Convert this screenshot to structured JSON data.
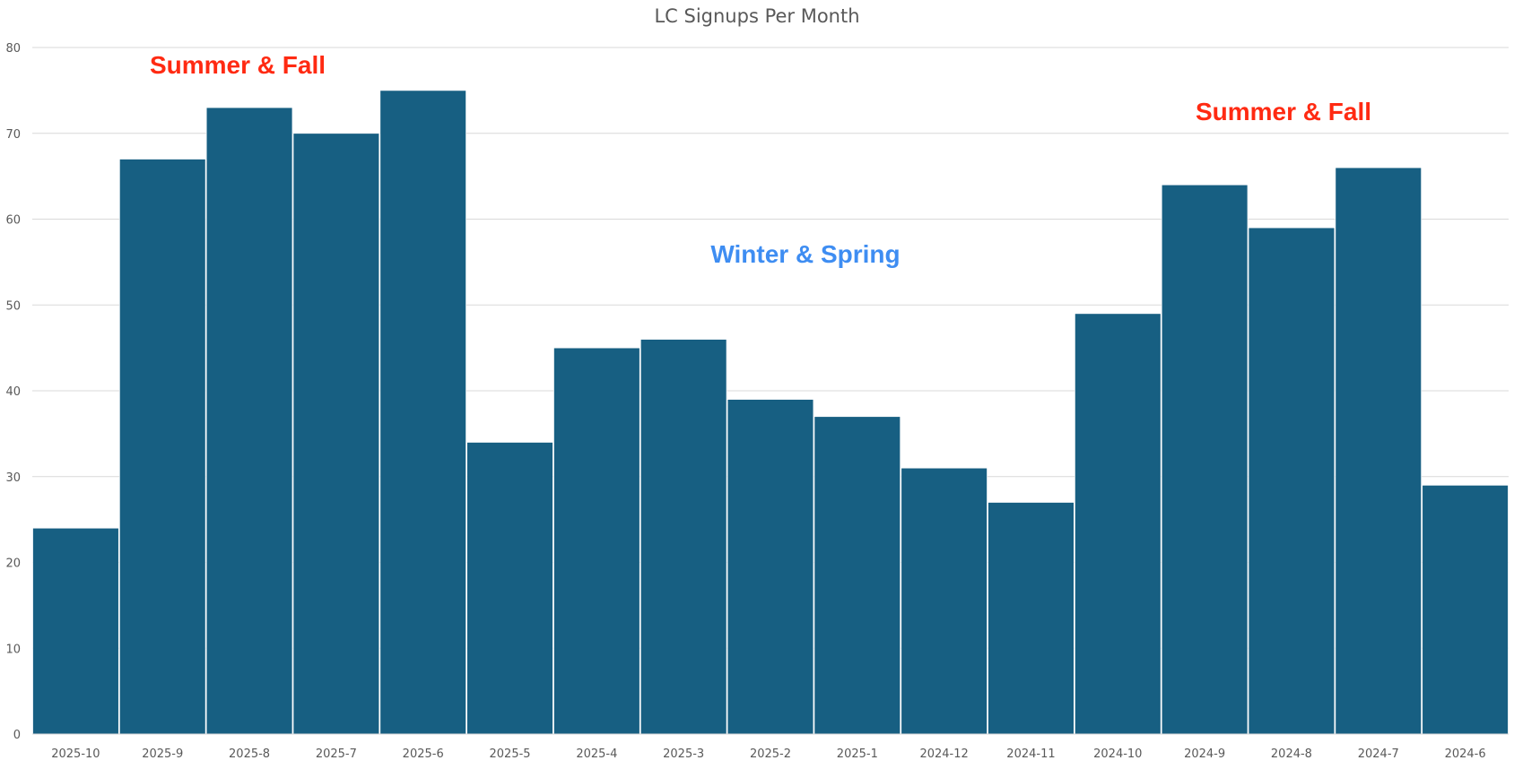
{
  "chart_data": {
    "type": "bar",
    "title": "LC Signups Per Month",
    "xlabel": "",
    "ylabel": "",
    "ylim": [
      0,
      80
    ],
    "yticks": [
      0,
      10,
      20,
      30,
      40,
      50,
      60,
      70,
      80
    ],
    "grid": true,
    "bar_color": "#175f82",
    "categories": [
      "2025-10",
      "2025-9",
      "2025-8",
      "2025-7",
      "2025-6",
      "2025-5",
      "2025-4",
      "2025-3",
      "2025-2",
      "2025-1",
      "2024-12",
      "2024-11",
      "2024-10",
      "2024-9",
      "2024-8",
      "2024-7",
      "2024-6"
    ],
    "values": [
      24,
      67,
      73,
      70,
      75,
      34,
      45,
      46,
      39,
      37,
      31,
      27,
      49,
      64,
      59,
      66,
      29
    ],
    "annotations": [
      {
        "text": "Summer & Fall",
        "color": "#ff2a12"
      },
      {
        "text": "Winter & Spring",
        "color": "#3e8df2"
      },
      {
        "text": "Summer & Fall",
        "color": "#ff2a12"
      }
    ]
  }
}
